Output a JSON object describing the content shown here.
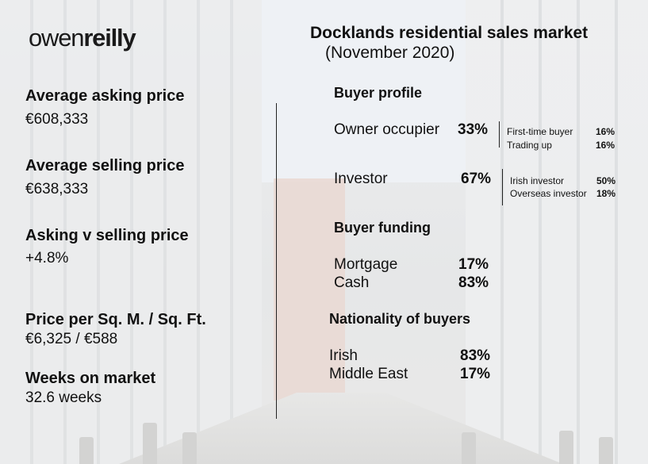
{
  "brand": {
    "part1": "owen",
    "part2": "reilly"
  },
  "header": {
    "title": "Docklands residential sales market",
    "subtitle": "(November 2020)"
  },
  "stats": [
    {
      "label": "Average asking price",
      "value": "€608,333"
    },
    {
      "label": "Average selling price",
      "value": "€638,333"
    },
    {
      "label": "Asking v selling price",
      "value": "+4.8%"
    },
    {
      "label": "Price per Sq. M. / Sq. Ft.",
      "value": "€6,325 / €588"
    },
    {
      "label": "Weeks on market",
      "value": "32.6 weeks"
    }
  ],
  "buyer_profile": {
    "heading": "Buyer profile",
    "owner": {
      "label": "Owner occupier",
      "pct": "33%",
      "breakdown": [
        {
          "label": "First-time buyer",
          "pct": "16%"
        },
        {
          "label": "Trading up",
          "pct": "16%"
        }
      ]
    },
    "investor": {
      "label": "Investor",
      "pct": "67%",
      "breakdown": [
        {
          "label": "Irish investor",
          "pct": "50%"
        },
        {
          "label": "Overseas investor",
          "pct": "18%"
        }
      ]
    }
  },
  "buyer_funding": {
    "heading": "Buyer funding",
    "rows": [
      {
        "label": "Mortgage",
        "pct": "17%"
      },
      {
        "label": "Cash",
        "pct": "83%"
      }
    ]
  },
  "nationality": {
    "heading": "Nationality of buyers",
    "rows": [
      {
        "label": "Irish",
        "pct": "83%"
      },
      {
        "label": "Middle East",
        "pct": "17%"
      }
    ]
  }
}
